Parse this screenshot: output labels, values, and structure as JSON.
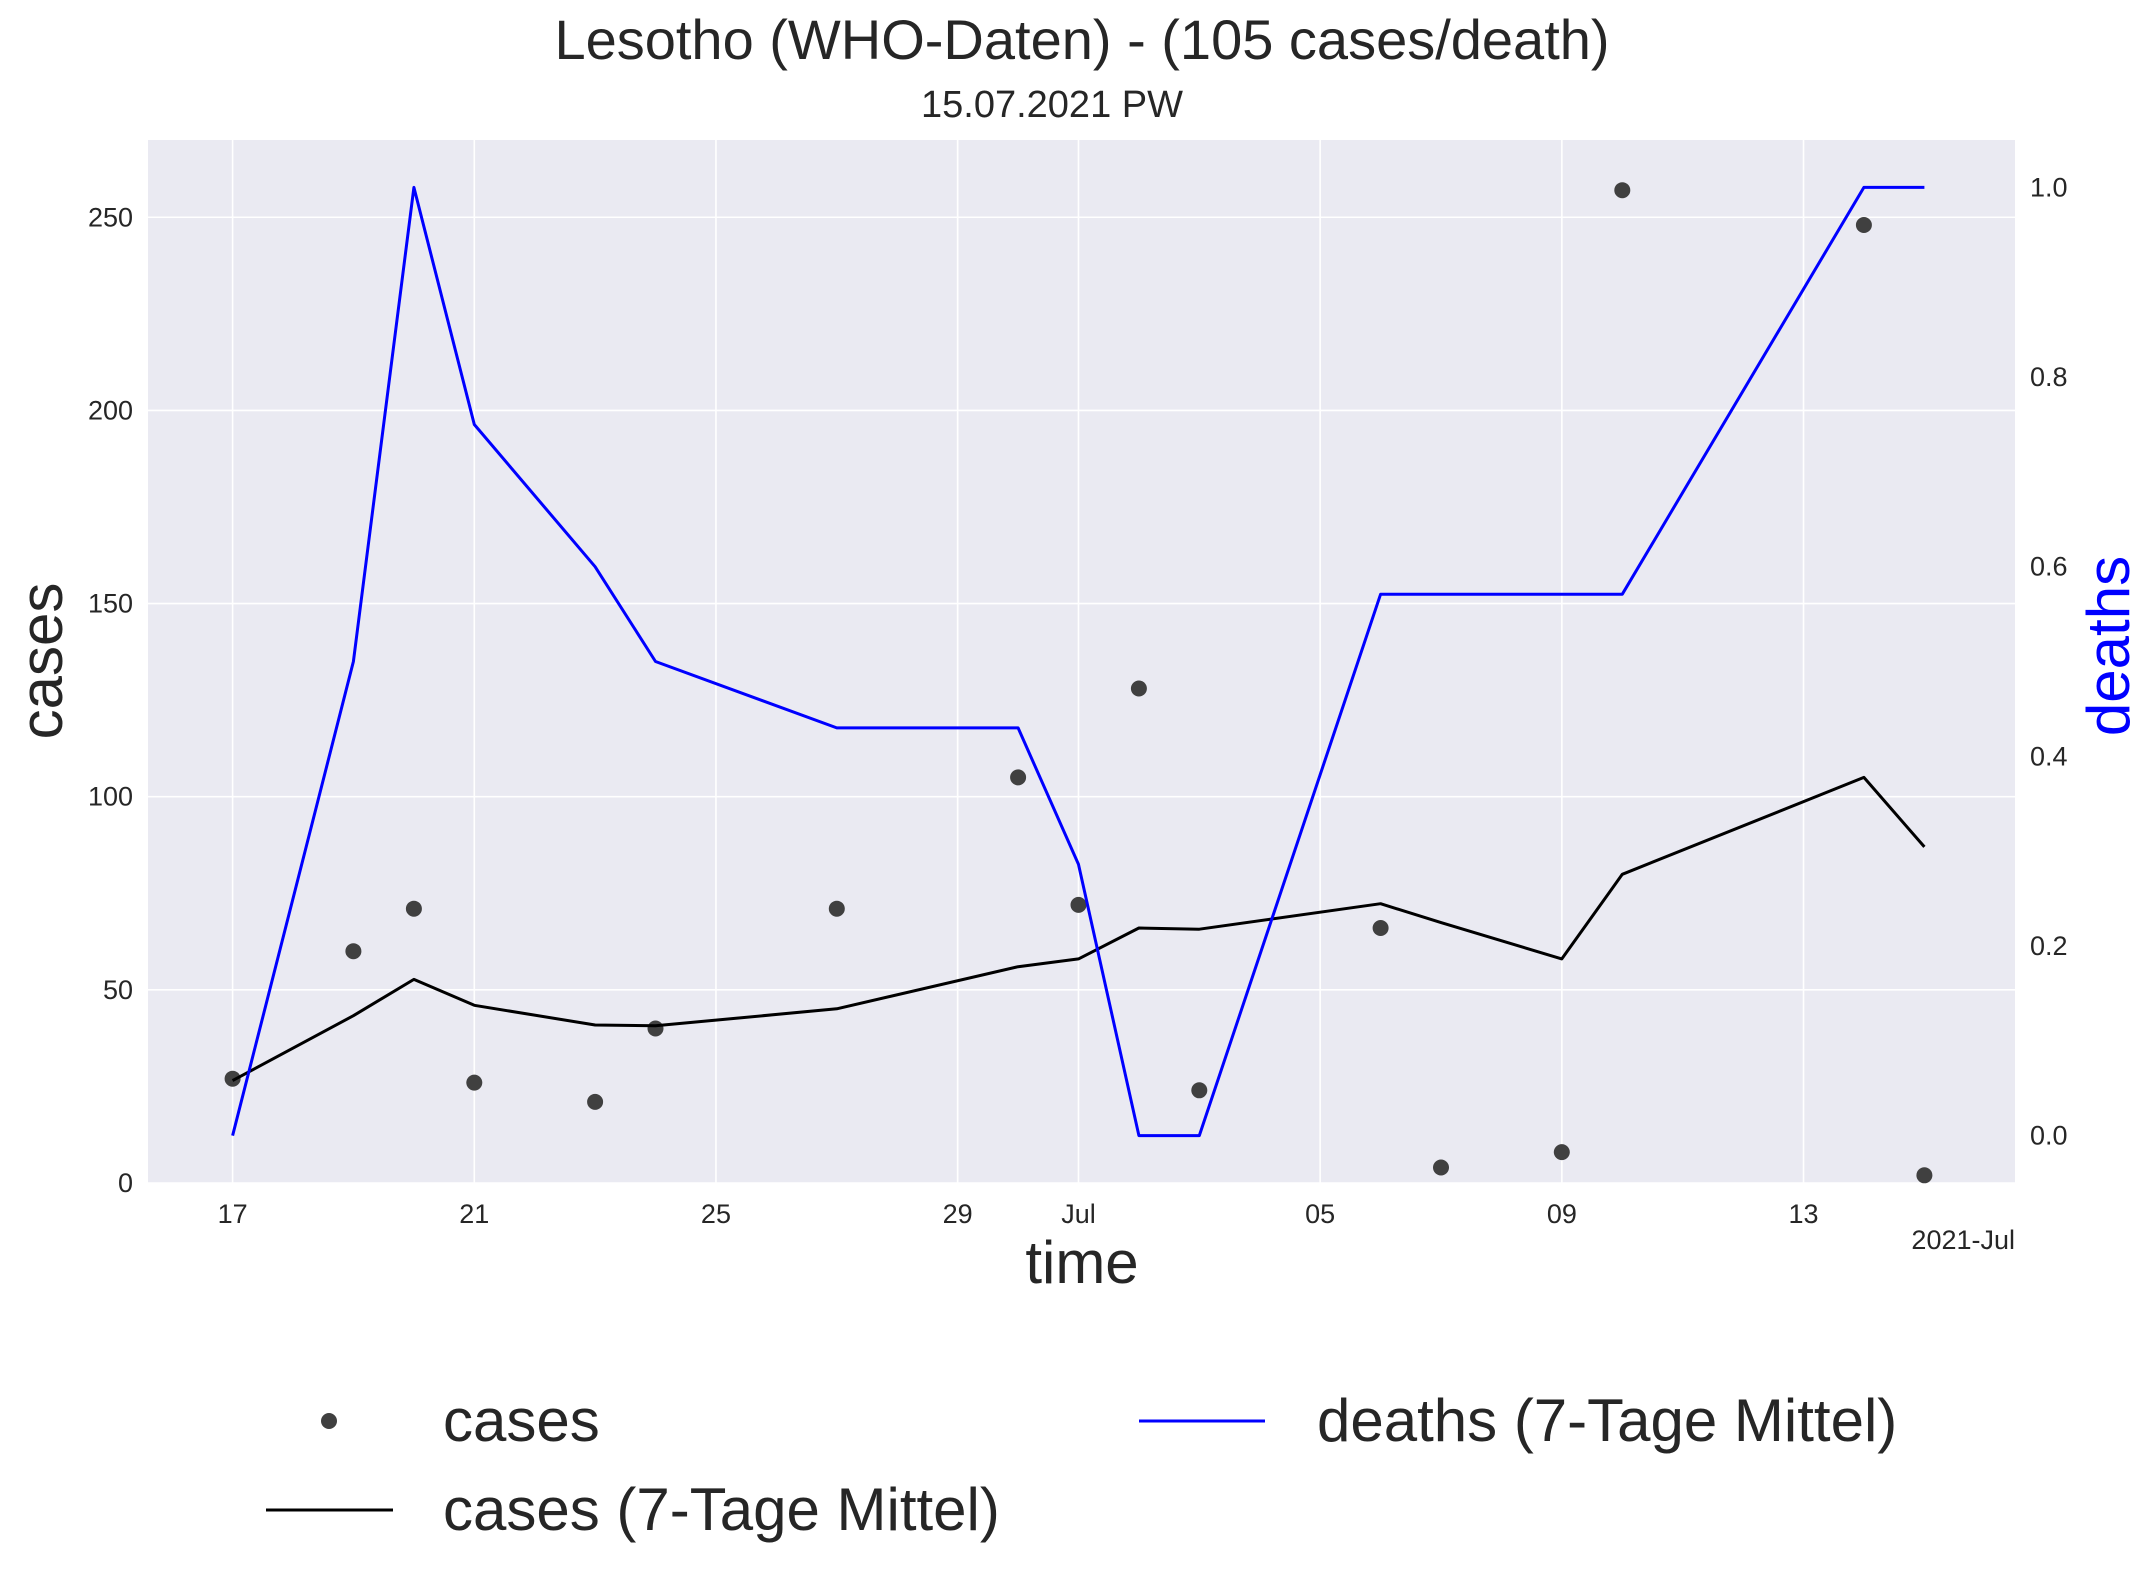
{
  "chart_data": {
    "type": "line",
    "title": "Lesotho (WHO-Daten) - (105 cases/death)",
    "subtitle": "15.07.2021 PW",
    "xlabel": "time",
    "ylabel_left": "cases",
    "ylabel_right": "deaths",
    "ylabel_right_color": "#0000ff",
    "x_offset_label": "2021-Jul",
    "x_ticks": [
      "17",
      "21",
      "25",
      "29",
      "Jul",
      "05",
      "09",
      "13"
    ],
    "x_tick_dates": [
      "2021-06-17",
      "2021-06-21",
      "2021-06-25",
      "2021-06-29",
      "2021-07-01",
      "2021-07-05",
      "2021-07-09",
      "2021-07-13"
    ],
    "xlim": [
      "2021-06-15.6",
      "2021-07-16.5"
    ],
    "yticks_left": [
      "0",
      "50",
      "100",
      "150",
      "200",
      "250"
    ],
    "ylim_left": [
      0,
      270
    ],
    "yticks_right": [
      "0.0",
      "0.2",
      "0.4",
      "0.6",
      "0.8",
      "1.0"
    ],
    "ylim_right": [
      -0.05,
      1.05
    ],
    "grid": true,
    "background": "#eaeaf2",
    "legend_position": "bottom",
    "series": [
      {
        "name": "cases",
        "kind": "scatter",
        "axis": "left",
        "color": "#404040",
        "x": [
          "2021-06-17",
          "2021-06-19",
          "2021-06-20",
          "2021-06-21",
          "2021-06-23",
          "2021-06-24",
          "2021-06-27",
          "2021-06-30",
          "2021-07-01",
          "2021-07-02",
          "2021-07-03",
          "2021-07-06",
          "2021-07-07",
          "2021-07-09",
          "2021-07-10",
          "2021-07-14",
          "2021-07-15"
        ],
        "values": [
          27,
          60,
          71,
          26,
          21,
          40,
          71,
          105,
          72,
          128,
          24,
          66,
          4,
          8,
          257,
          248,
          2
        ]
      },
      {
        "name": "cases (7-Tage Mittel)",
        "kind": "line",
        "axis": "left",
        "color": "#000000",
        "x": [
          "2021-06-17",
          "2021-06-19",
          "2021-06-20",
          "2021-06-21",
          "2021-06-23",
          "2021-06-24",
          "2021-06-27",
          "2021-06-30",
          "2021-07-01",
          "2021-07-02",
          "2021-07-03",
          "2021-07-06",
          "2021-07-07",
          "2021-07-09",
          "2021-07-10",
          "2021-07-14",
          "2021-07-15"
        ],
        "values": [
          26.5,
          43.3,
          52.7,
          46.0,
          40.9,
          40.7,
          45.1,
          56.0,
          58.0,
          66.0,
          65.7,
          72.3,
          67.4,
          58.0,
          79.9,
          105.0,
          87.0
        ]
      },
      {
        "name": "deaths (7-Tage Mittel)",
        "kind": "line",
        "axis": "right",
        "color": "#0000ff",
        "x": [
          "2021-06-17",
          "2021-06-19",
          "2021-06-20",
          "2021-06-21",
          "2021-06-23",
          "2021-06-24",
          "2021-06-27",
          "2021-06-30",
          "2021-07-01",
          "2021-07-02",
          "2021-07-03",
          "2021-07-06",
          "2021-07-09",
          "2021-07-10",
          "2021-07-14",
          "2021-07-15"
        ],
        "values": [
          0.0,
          0.5,
          1.0,
          0.75,
          0.6,
          0.5,
          0.43,
          0.43,
          0.286,
          0.0,
          0.0,
          0.571,
          0.571,
          0.571,
          1.0,
          1.0
        ]
      }
    ]
  }
}
